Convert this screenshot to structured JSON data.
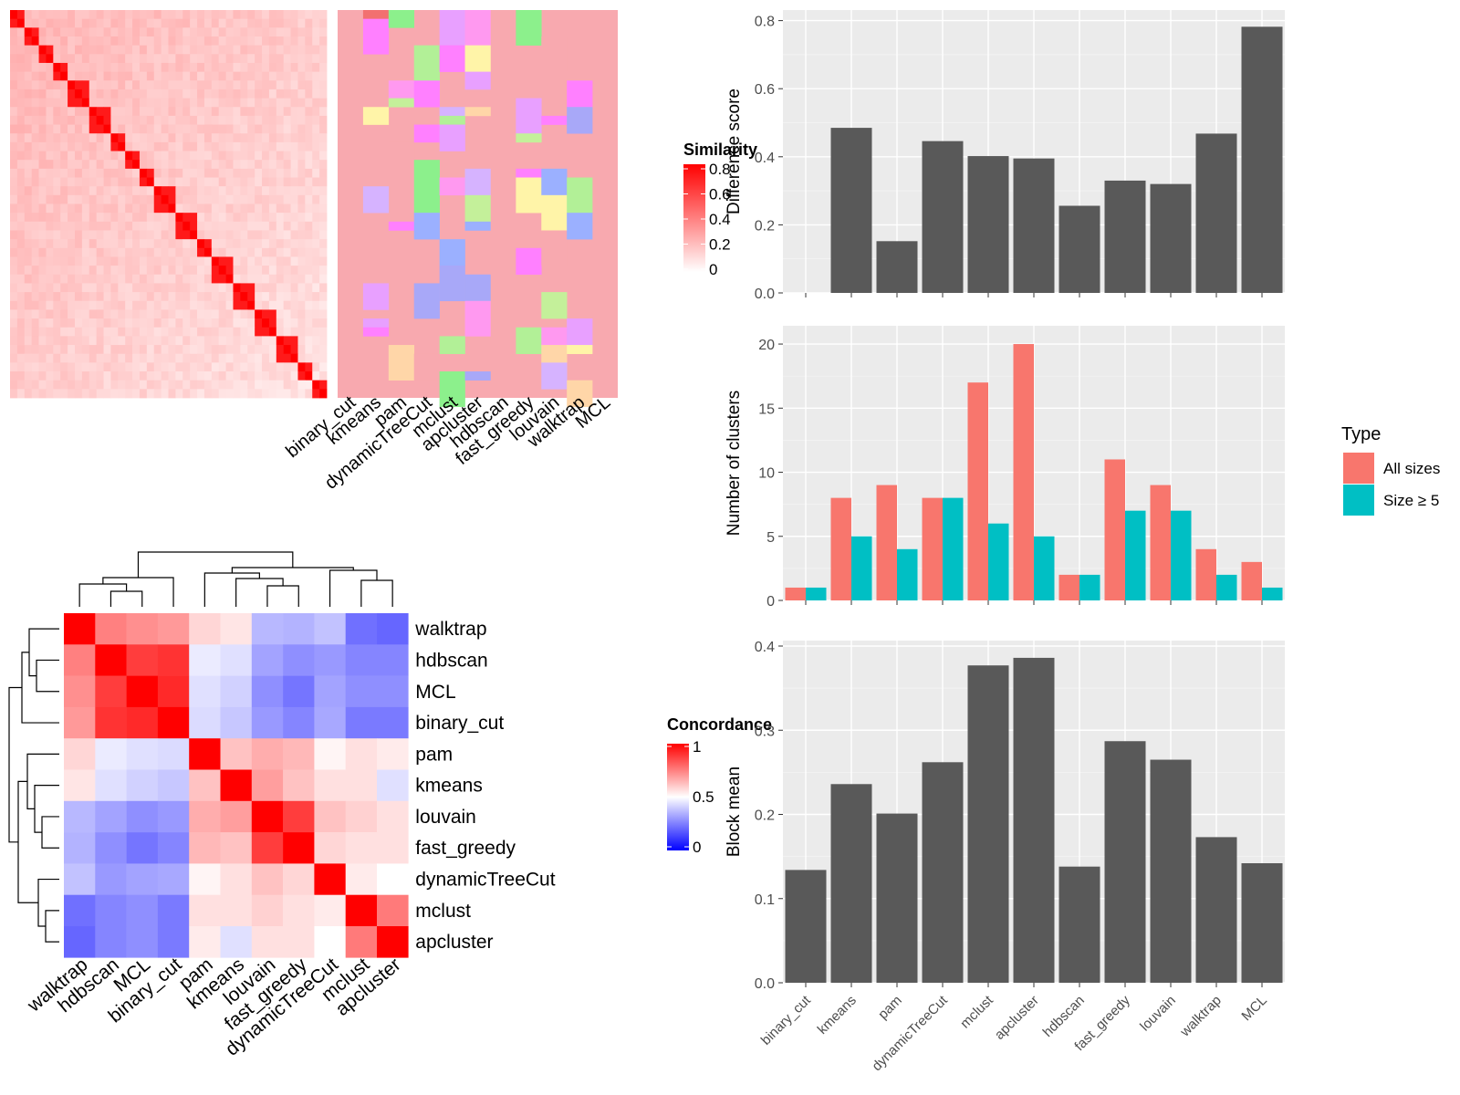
{
  "methods": [
    "binary_cut",
    "kmeans",
    "pam",
    "dynamicTreeCut",
    "mclust",
    "apcluster",
    "hdbscan",
    "fast_greedy",
    "louvain",
    "walktrap",
    "MCL"
  ],
  "colors": {
    "panel_bg": "#ebebeb",
    "bar_fill": "#595959",
    "all_sizes": "#f8766d",
    "size_ge5": "#00bfc4",
    "diag_red": "#ff0000",
    "class_base": "#f8a9af",
    "low_blue": "#0000ff"
  },
  "chart_data": [
    {
      "id": "similarity-heatmap",
      "type": "heatmap",
      "legend": {
        "title": "Similarity",
        "ticks": [
          "0",
          "0.2",
          "0.4",
          "0.6",
          "0.8"
        ]
      },
      "column_labels": [
        "binary_cut",
        "kmeans",
        "pam",
        "dynamicTreeCut",
        "mclust",
        "apcluster",
        "hdbscan",
        "fast_greedy",
        "louvain",
        "walktrap",
        "MCL"
      ],
      "palette": [
        "#f8a9af",
        "#b2f097",
        "#ff99f0",
        "#ff80ff",
        "#a8a8f8",
        "#fff4a8",
        "#f5c6c6",
        "#cccccc"
      ]
    },
    {
      "id": "concordance-heatmap",
      "type": "heatmap",
      "legend": {
        "title": "Concordance",
        "ticks": [
          "1",
          "0.5",
          "0"
        ]
      },
      "row_labels": [
        "walktrap",
        "hdbscan",
        "MCL",
        "binary_cut",
        "pam",
        "kmeans",
        "louvain",
        "fast_greedy",
        "dynamicTreeCut",
        "mclust",
        "apcluster"
      ],
      "col_labels": [
        "walktrap",
        "hdbscan",
        "MCL",
        "binary_cut",
        "pam",
        "kmeans",
        "louvain",
        "fast_greedy",
        "dynamicTreeCut",
        "mclust",
        "apcluster"
      ],
      "values": [
        [
          1.0,
          0.75,
          0.72,
          0.7,
          0.58,
          0.55,
          0.36,
          0.35,
          0.38,
          0.22,
          0.2
        ],
        [
          0.75,
          1.0,
          0.88,
          0.9,
          0.46,
          0.44,
          0.32,
          0.28,
          0.3,
          0.26,
          0.26
        ],
        [
          0.72,
          0.88,
          1.0,
          0.92,
          0.44,
          0.41,
          0.28,
          0.23,
          0.32,
          0.28,
          0.28
        ],
        [
          0.7,
          0.9,
          0.92,
          1.0,
          0.43,
          0.39,
          0.3,
          0.26,
          0.33,
          0.24,
          0.24
        ],
        [
          0.58,
          0.46,
          0.44,
          0.43,
          1.0,
          0.62,
          0.66,
          0.64,
          0.52,
          0.56,
          0.54
        ],
        [
          0.55,
          0.44,
          0.41,
          0.39,
          0.62,
          1.0,
          0.69,
          0.62,
          0.56,
          0.56,
          0.44
        ],
        [
          0.36,
          0.32,
          0.28,
          0.3,
          0.66,
          0.69,
          1.0,
          0.88,
          0.62,
          0.59,
          0.56
        ],
        [
          0.35,
          0.28,
          0.23,
          0.26,
          0.64,
          0.62,
          0.88,
          1.0,
          0.58,
          0.56,
          0.56
        ],
        [
          0.38,
          0.3,
          0.32,
          0.33,
          0.52,
          0.56,
          0.62,
          0.58,
          1.0,
          0.54,
          0.5
        ],
        [
          0.22,
          0.26,
          0.28,
          0.24,
          0.56,
          0.56,
          0.59,
          0.56,
          0.54,
          1.0,
          0.76
        ],
        [
          0.2,
          0.26,
          0.28,
          0.24,
          0.54,
          0.44,
          0.56,
          0.56,
          0.5,
          0.76,
          1.0
        ]
      ]
    },
    {
      "id": "difference-score",
      "type": "bar",
      "categories": [
        "binary_cut",
        "kmeans",
        "pam",
        "dynamicTreeCut",
        "mclust",
        "apcluster",
        "hdbscan",
        "fast_greedy",
        "louvain",
        "walktrap",
        "MCL"
      ],
      "values": [
        0,
        0.485,
        0.152,
        0.446,
        0.402,
        0.395,
        0.256,
        0.33,
        0.32,
        0.468,
        0.782
      ],
      "ylabel": "Difference score",
      "ylim": [
        0,
        0.815
      ],
      "yticks": [
        "0.0",
        "0.2",
        "0.4",
        "0.6",
        "0.8"
      ],
      "grid": true
    },
    {
      "id": "number-of-clusters",
      "type": "bar",
      "categories": [
        "binary_cut",
        "kmeans",
        "pam",
        "dynamicTreeCut",
        "mclust",
        "apcluster",
        "hdbscan",
        "fast_greedy",
        "louvain",
        "walktrap",
        "MCL"
      ],
      "series": [
        {
          "name": "All sizes",
          "values": [
            1,
            8,
            9,
            8,
            17,
            20,
            2,
            11,
            9,
            4,
            3
          ]
        },
        {
          "name": "Size ≥ 5",
          "values": [
            1,
            5,
            4,
            8,
            6,
            5,
            2,
            7,
            7,
            2,
            1
          ]
        }
      ],
      "ylabel": "Number of clusters",
      "ylim": [
        0,
        21
      ],
      "yticks": [
        "0",
        "5",
        "10",
        "15",
        "20"
      ],
      "legend": {
        "title": "Type",
        "position": "right"
      },
      "grid": true
    },
    {
      "id": "block-mean",
      "type": "bar",
      "categories": [
        "binary_cut",
        "kmeans",
        "pam",
        "dynamicTreeCut",
        "mclust",
        "apcluster",
        "hdbscan",
        "fast_greedy",
        "louvain",
        "walktrap",
        "MCL"
      ],
      "values": [
        0.134,
        0.236,
        0.201,
        0.262,
        0.377,
        0.386,
        0.138,
        0.287,
        0.265,
        0.173,
        0.142
      ],
      "ylabel": "Block mean",
      "ylim": [
        0,
        0.4
      ],
      "yticks": [
        "0.0",
        "0.1",
        "0.2",
        "0.3",
        "0.4"
      ],
      "grid": true
    }
  ]
}
